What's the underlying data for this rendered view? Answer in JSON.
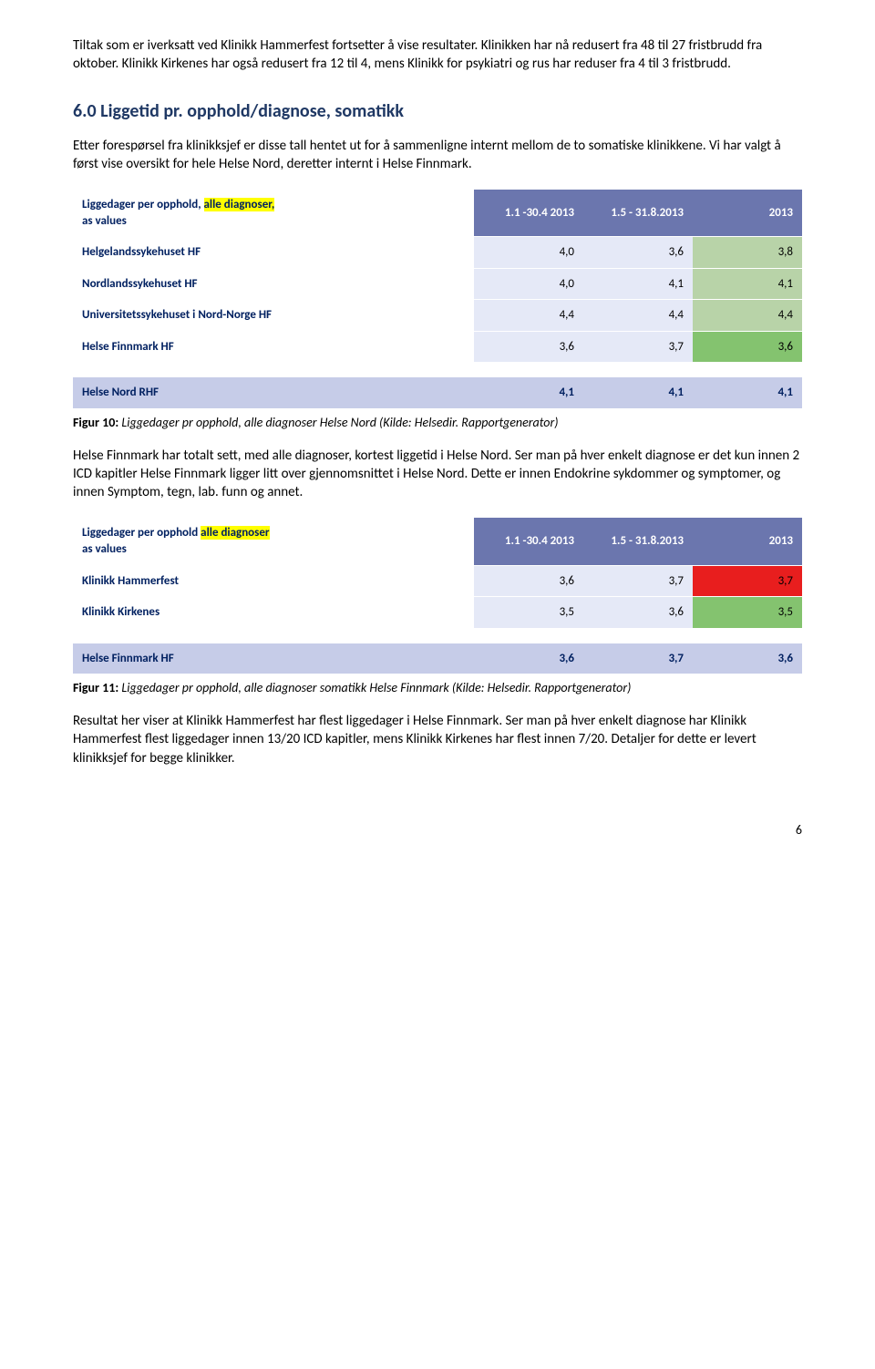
{
  "intro_p1": "Tiltak som er iverksatt ved Klinikk Hammerfest fortsetter å vise resultater. Klinikken har nå redusert fra 48 til 27 fristbrudd fra oktober. Klinikk Kirkenes har også redusert fra 12 til 4, mens Klinikk for psykiatri og rus har reduser fra 4 til 3 fristbrudd.",
  "heading": "6.0 Liggetid pr. opphold/diagnose, somatikk",
  "intro_p2": "Etter forespørsel fra klinikksjef er disse tall hentet ut for å sammenligne internt mellom de to somatiske klinikkene. Vi har valgt å først vise oversikt for hele Helse Nord, deretter internt i Helse Finnmark.",
  "table1": {
    "header_label_line1": "Liggedager per opphold, ",
    "header_label_hl": "alle diagnoser,",
    "header_label_line2": "as values",
    "cols": [
      "1.1 -30.4 2013",
      "1.5 - 31.8.2013",
      "2013"
    ],
    "rows": [
      {
        "label": "Helgelandssykehuset HF",
        "vals": [
          "4,0",
          "3,6",
          "3,8"
        ],
        "bg": [
          "#e5e9f7",
          "#e5e9f7",
          "#b8d3a8"
        ]
      },
      {
        "label": "Nordlandssykehuset HF",
        "vals": [
          "4,0",
          "4,1",
          "4,1"
        ],
        "bg": [
          "#e5e9f7",
          "#e5e9f7",
          "#b8d3a8"
        ]
      },
      {
        "label": "Universitetssykehuset i Nord-Norge HF",
        "vals": [
          "4,4",
          "4,4",
          "4,4"
        ],
        "bg": [
          "#e5e9f7",
          "#e5e9f7",
          "#b8d3a8"
        ]
      },
      {
        "label": "Helse Finnmark HF",
        "vals": [
          "3,6",
          "3,7",
          "3,6"
        ],
        "bg": [
          "#e5e9f7",
          "#e5e9f7",
          "#84c36f"
        ]
      }
    ],
    "footer": {
      "label": "Helse Nord RHF",
      "vals": [
        "4,1",
        "4,1",
        "4,1"
      ],
      "bg": [
        "#c6cce8",
        "#c6cce8",
        "#c6cce8"
      ],
      "label_bg": "#c6cce8"
    }
  },
  "caption1_b": "Figur 10:",
  "caption1_i": " Liggedager pr opphold, alle diagnoser Helse Nord     (Kilde:  Helsedir. Rapportgenerator)",
  "mid_para": "Helse Finnmark har totalt sett, med alle diagnoser, kortest liggetid i Helse Nord. Ser man på hver enkelt diagnose er det kun innen 2 ICD kapitler Helse Finnmark ligger litt over gjennomsnittet i Helse Nord. Dette er innen Endokrine sykdommer og symptomer, og innen Symptom, tegn, lab. funn og annet.",
  "table2": {
    "header_label_line1": "Liggedager per opphold ",
    "header_label_hl": "alle diagnoser",
    "header_label_line2": "as values",
    "cols": [
      "1.1 -30.4 2013",
      "1.5 - 31.8.2013",
      "2013"
    ],
    "rows": [
      {
        "label": "Klinikk Hammerfest",
        "vals": [
          "3,6",
          "3,7",
          "3,7"
        ],
        "bg": [
          "#e5e9f7",
          "#e5e9f7",
          "#e81e1e"
        ]
      },
      {
        "label": "Klinikk Kirkenes",
        "vals": [
          "3,5",
          "3,6",
          "3,5"
        ],
        "bg": [
          "#e5e9f7",
          "#e5e9f7",
          "#84c36f"
        ]
      }
    ],
    "footer": {
      "label": "Helse Finnmark HF",
      "vals": [
        "3,6",
        "3,7",
        "3,6"
      ],
      "bg": [
        "#c6cce8",
        "#c6cce8",
        "#c6cce8"
      ],
      "label_bg": "#c6cce8"
    }
  },
  "caption2_b": "Figur 11:",
  "caption2_i": " Liggedager pr opphold, alle diagnoser somatikk Helse Finnmark (Kilde:  Helsedir. Rapportgenerator)",
  "end_para": "Resultat her viser at Klinikk Hammerfest har flest liggedager i Helse Finnmark. Ser man på hver enkelt diagnose har Klinikk Hammerfest flest liggedager innen 13/20 ICD kapitler, mens Klinikk Kirkenes har flest innen 7/20.  Detaljer for dette er levert klinikksjef for begge klinikker.",
  "page_number": "6",
  "colors": {
    "header_bg": "#6b76ae",
    "header_text": "#ffffff",
    "label_text": "#002060",
    "row_alt": "#e5e9f7",
    "footer_bg": "#c6cce8",
    "green_light": "#b8d3a8",
    "green_strong": "#84c36f",
    "red": "#e81e1e",
    "highlight": "#ffff00"
  }
}
